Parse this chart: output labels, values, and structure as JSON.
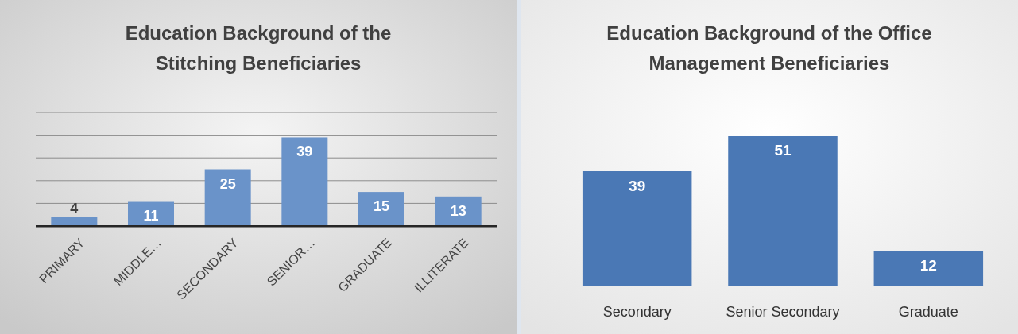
{
  "chart_data": [
    {
      "type": "bar",
      "title": "Education Background of the Stitching Beneficiaries",
      "categories": [
        "PRIMARY",
        "MIDDLE…",
        "SECONDARY",
        "SENIOR…",
        "GRADUATE",
        "ILLITERATE"
      ],
      "values": [
        4,
        11,
        25,
        39,
        15,
        13
      ],
      "color": "#6a93c9",
      "data_labels": true,
      "grid": "y",
      "ylim": [
        0,
        50
      ],
      "yticks": [
        {
          "value": 0,
          "label": null
        },
        {
          "value": 10,
          "label": null
        },
        {
          "value": 20,
          "label": null
        },
        {
          "value": 30,
          "label": null
        },
        {
          "value": 40,
          "label": null
        },
        {
          "value": 50,
          "label": null
        }
      ],
      "tick_labels": "x"
    },
    {
      "type": "bar",
      "title": "Education Background of the Office Management Beneficiaries",
      "categories": [
        "Secondary",
        "Senior Secondary",
        "Graduate"
      ],
      "values": [
        39,
        51,
        12
      ],
      "color": "#4a78b5",
      "data_labels": true,
      "tick_labels": "x"
    }
  ]
}
